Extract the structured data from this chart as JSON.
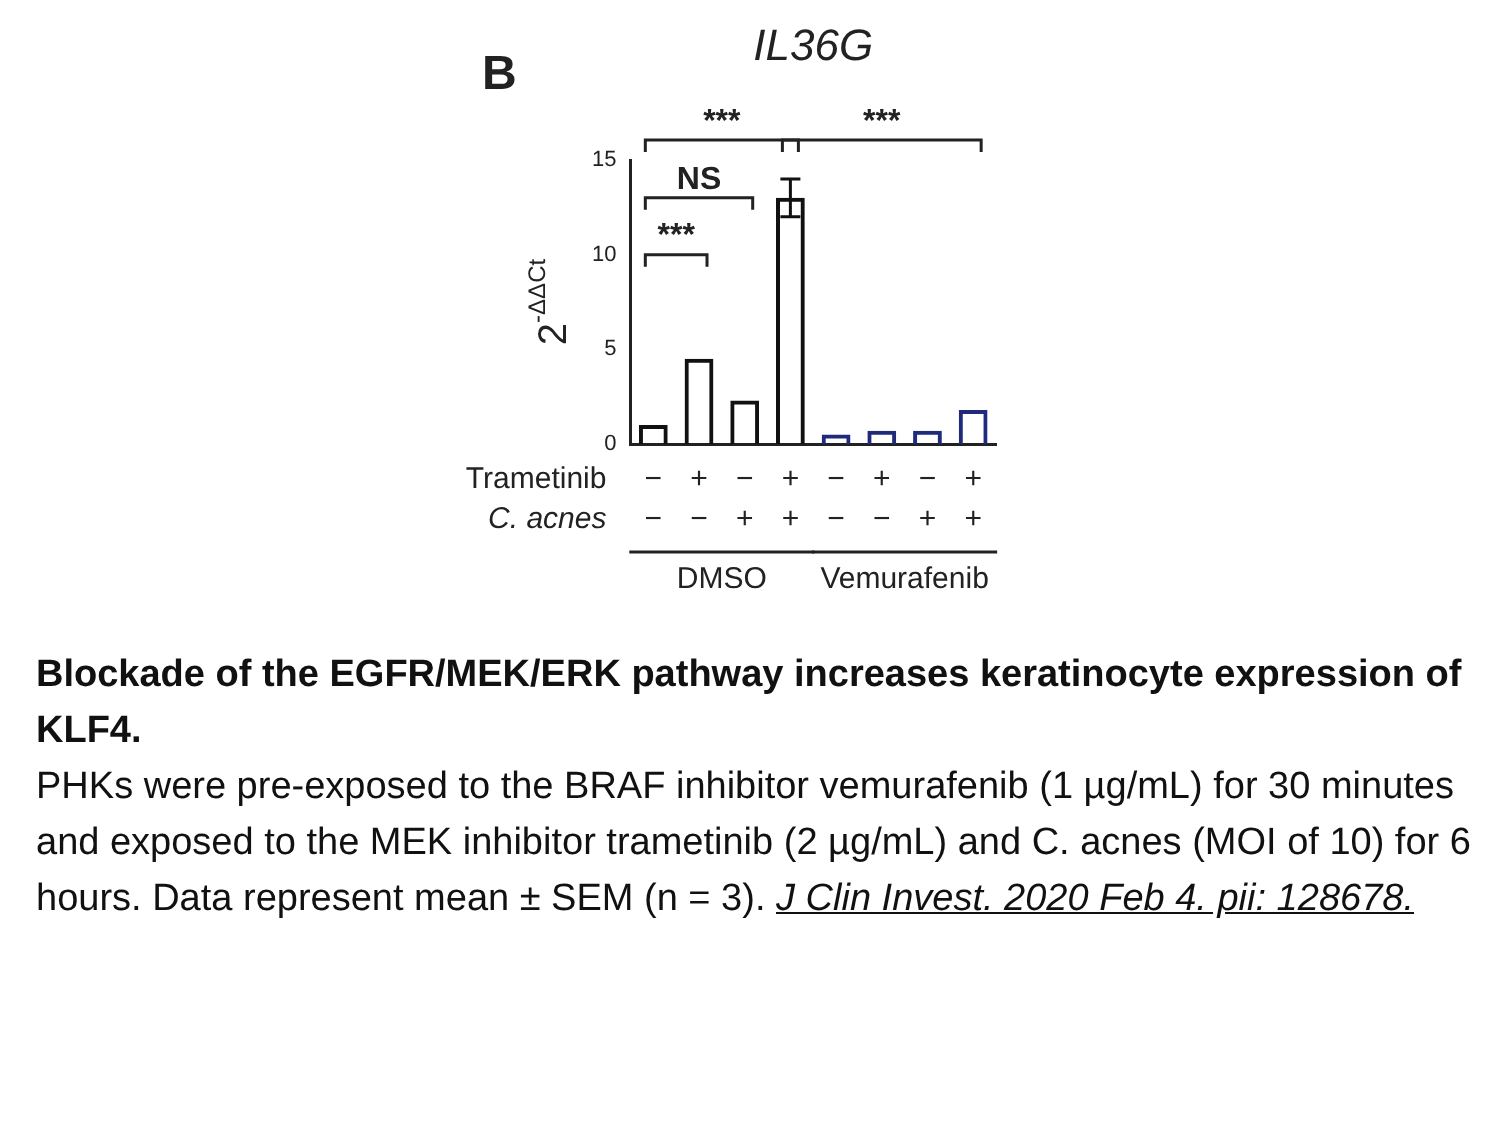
{
  "chart_data": {
    "type": "bar",
    "title": "IL36G",
    "ylabel": "2$^{-ΔΔCt}$",
    "categories": [
      "−\n−",
      "+\n−",
      "−\n+",
      "+\n+",
      "−\n−",
      "+\n−",
      "−\n+",
      "+\n+"
    ],
    "values": [
      1.0,
      4.5,
      2.3,
      13.0,
      0.5,
      0.7,
      0.7,
      1.8
    ],
    "errors": [
      null,
      null,
      null,
      1.0,
      null,
      null,
      null,
      null
    ],
    "colors": [
      "#111111",
      "#111111",
      "#111111",
      "#111111",
      "#1f2a7a",
      "#1f2a7a",
      "#1f2a7a",
      "#1f2a7a"
    ],
    "ylim": [
      0,
      15
    ],
    "yticks": [
      0,
      5,
      10,
      15
    ],
    "grid": false,
    "legend": false,
    "annotations": [
      "B",
      "***",
      "***",
      "NS",
      "***",
      "Trametinib",
      "C. acnes",
      "DMSO",
      "Vemurafenib",
      "Blockade of the EGFR/MEK/ERK pathway increases keratinocyte expression of KLF4.",
      "PHKs were pre-exposed to the BRAF inhibitor vemurafenib (1 µg/mL) for 30 minutes and exposed to the MEK inhibitor trametinib (2 µg/mL) and C. acnes (MOI of 10) for 6 hours. Data represent mean ± SEM (n = 3).",
      "J Clin Invest. 2020 Feb 4. pii: 128678."
    ]
  }
}
